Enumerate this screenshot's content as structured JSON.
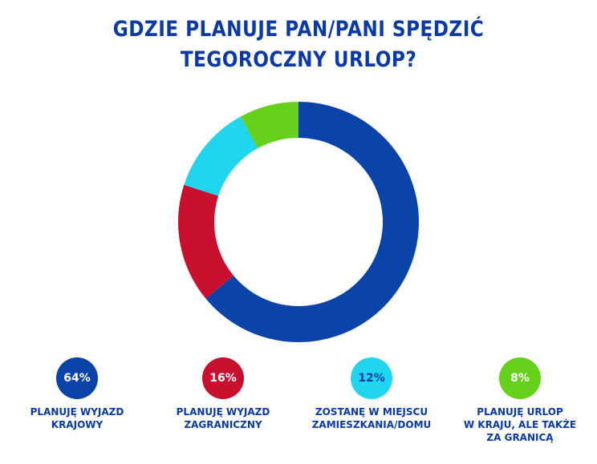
{
  "title": {
    "line1": "GDZIE PLANUJE PAN/PANI SPĘDZIĆ",
    "line2": "TEGOROCZNY URLOP?"
  },
  "chart_data": {
    "type": "pie",
    "variant": "donut",
    "title": "GDZIE PLANUJE PAN/PANI SPĘDZIĆ TEGOROCZNY URLOP?",
    "series": [
      {
        "name": "PLANUJĘ WYJAZD KRAJOWY",
        "value": 64,
        "label": "64%",
        "color": "#0a44a8",
        "label_lines": [
          "PLANUJĘ WYJAZD",
          "KRAJOWY"
        ]
      },
      {
        "name": "PLANUJĘ WYJAZD ZAGRANICZNY",
        "value": 16,
        "label": "16%",
        "color": "#c8102e",
        "label_lines": [
          "PLANUJĘ WYJAZD",
          "ZAGRANICZNY"
        ]
      },
      {
        "name": "ZOSTANĘ W MIEJSCU ZAMIESZKANIA/DOMU",
        "value": 12,
        "label": "12%",
        "color": "#1fd6ee",
        "label_lines": [
          "ZOSTANĘ W MIEJSCU",
          "ZAMIESZKANIA/DOMU"
        ]
      },
      {
        "name": "PLANUJĘ URLOP W KRAJU, ALE TAKŻE ZA GRANICĄ",
        "value": 8,
        "label": "8%",
        "color": "#66d11a",
        "label_lines": [
          "PLANUJĘ URLOP",
          "W KRAJU, ALE TAKŻE",
          "ZA GRANICĄ"
        ]
      }
    ],
    "legend_position": "bottom"
  }
}
